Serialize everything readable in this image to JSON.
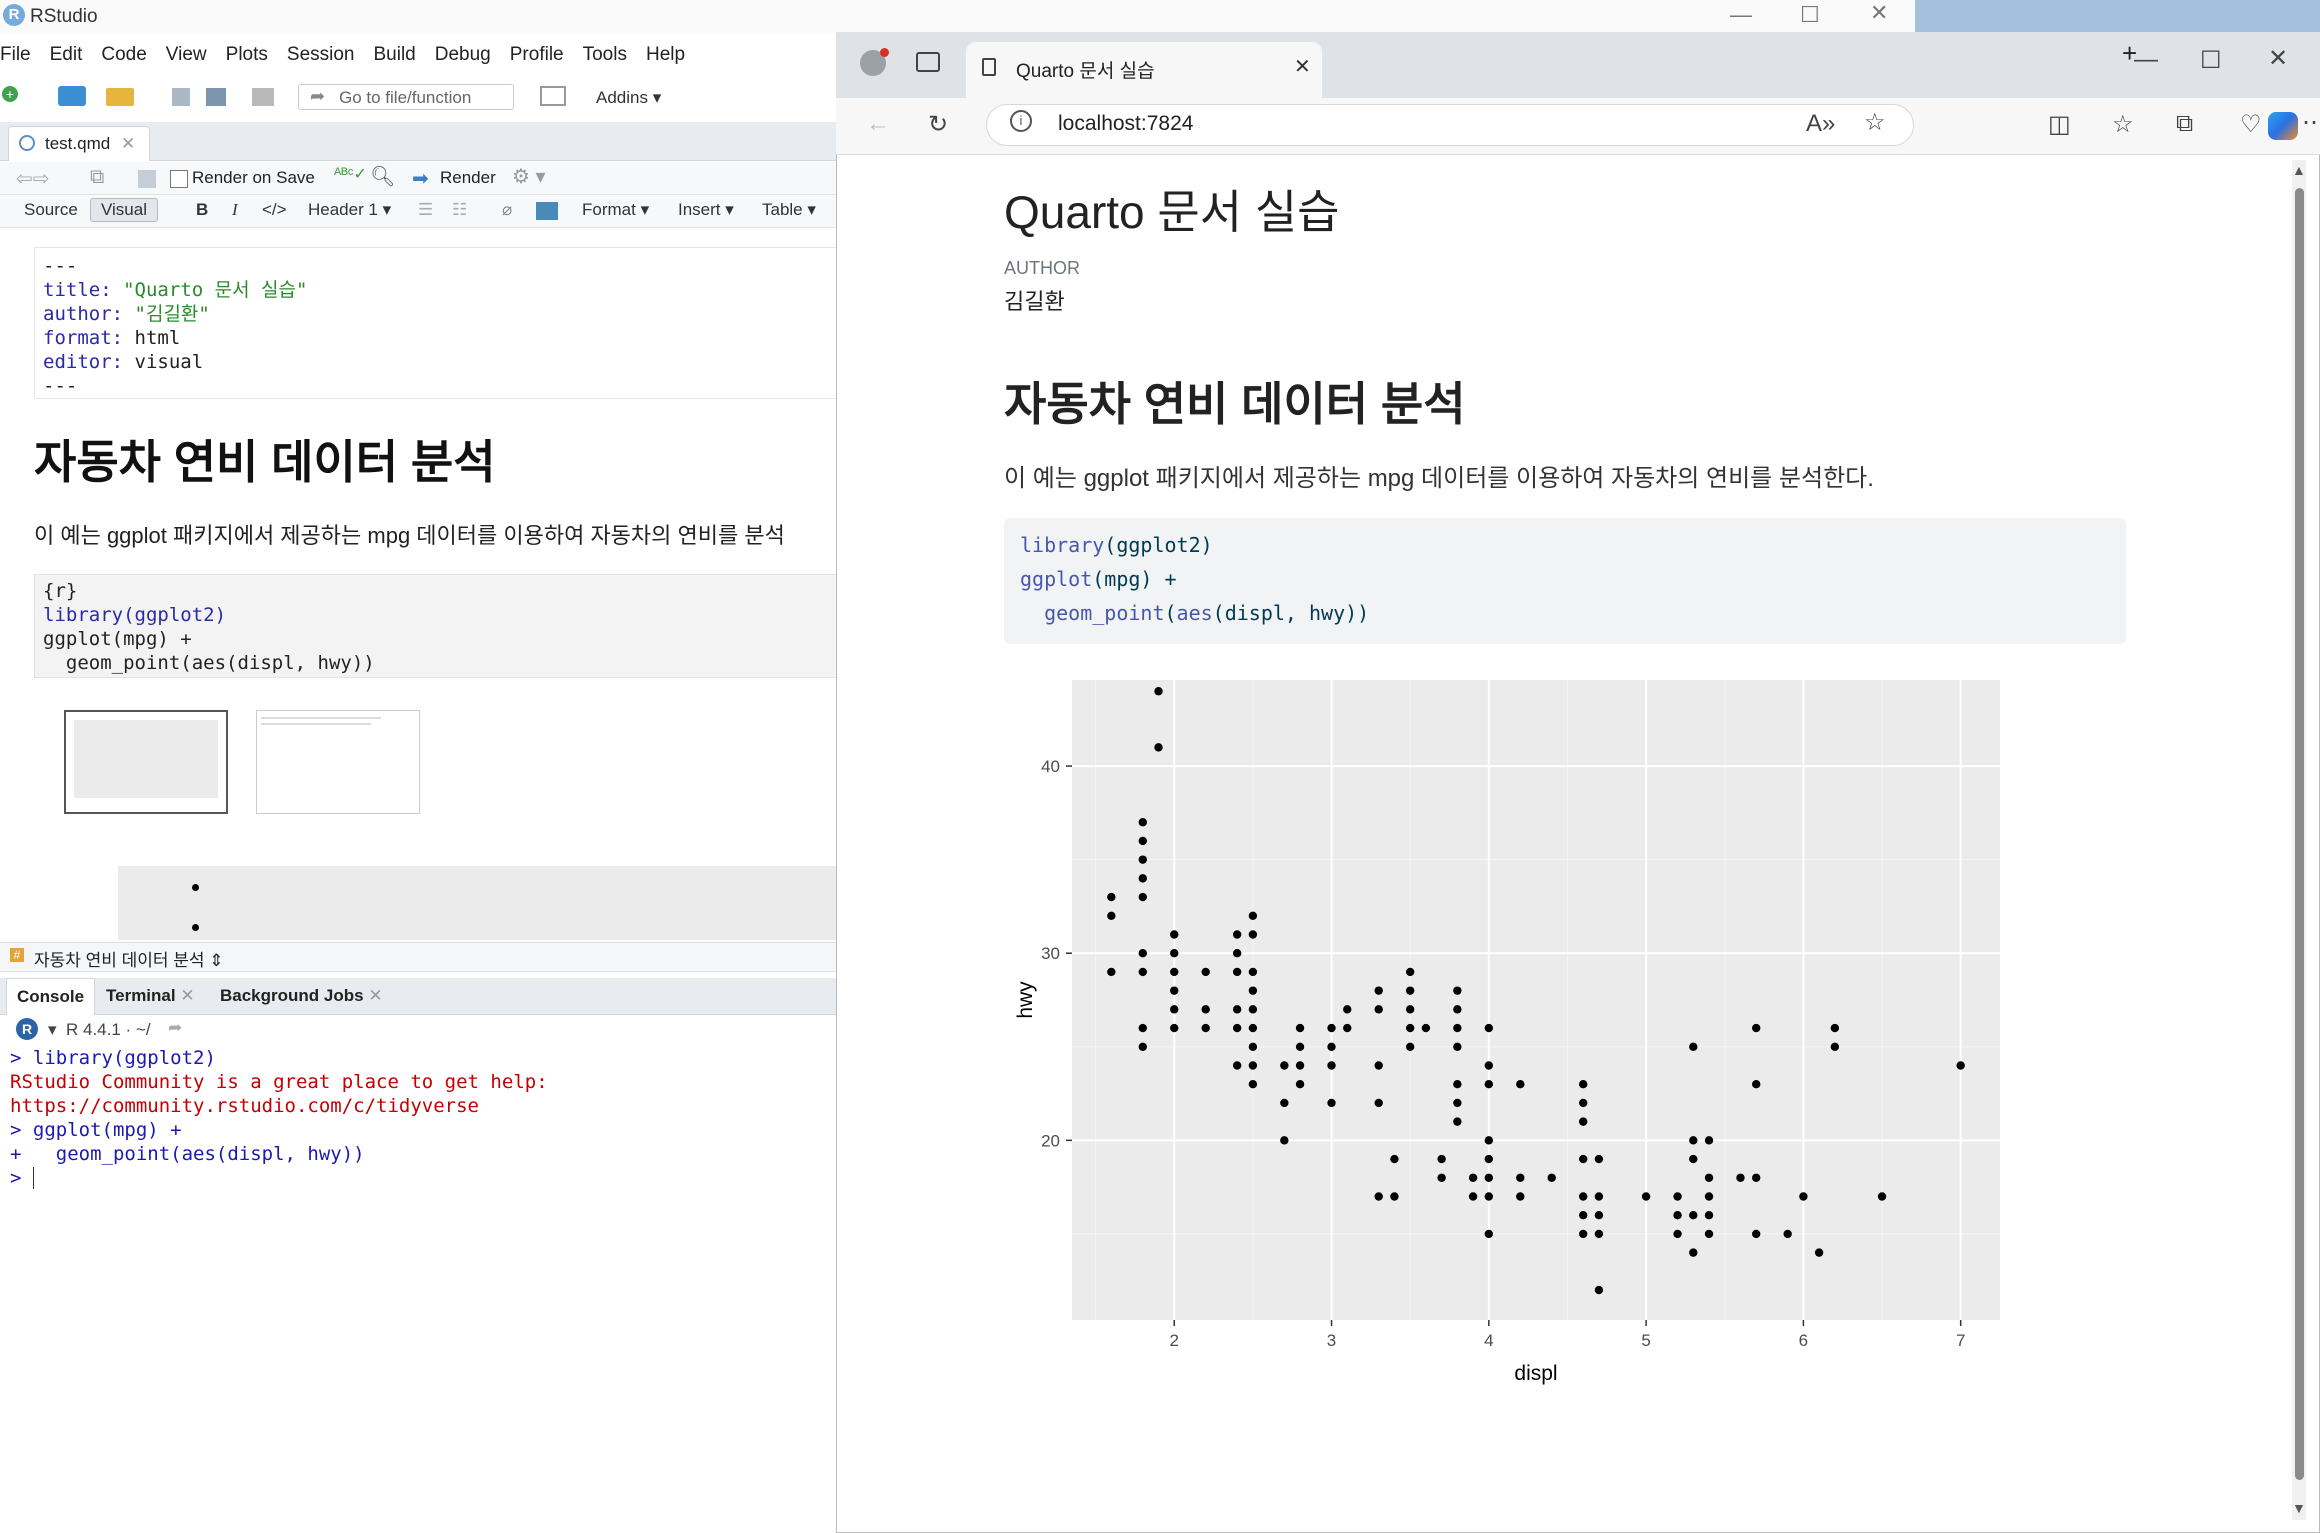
{
  "rstudio": {
    "title": "RStudio",
    "menu": [
      "File",
      "Edit",
      "Code",
      "View",
      "Plots",
      "Session",
      "Build",
      "Debug",
      "Profile",
      "Tools",
      "Help"
    ],
    "goto_placeholder": "Go to file/function",
    "addins": "Addins",
    "file_tab": "test.qmd",
    "render_on_save": "Render on Save",
    "render": "Render",
    "source_btn": "Source",
    "visual_btn": "Visual",
    "header_select": "Header 1",
    "format_menu": "Format",
    "insert_menu": "Insert",
    "table_menu": "Table",
    "yaml": {
      "sep": "---",
      "title_key": "title:",
      "title_val": "\"Quarto 문서 실습\"",
      "author_key": "author:",
      "author_val": "\"김길환\"",
      "format_key": "format:",
      "format_val": "html",
      "editor_key": "editor:",
      "editor_val": "visual"
    },
    "heading": "자동차 연비 데이터 분석",
    "paragraph": "이 예는 ggplot 패키지에서 제공하는 mpg 데이터를 이용하여 자동차의 연비를 분석",
    "chunk": {
      "header": "{r}",
      "line1": "library(ggplot2)",
      "line2": "ggplot(mpg) +",
      "line3": "  geom_point(aes(displ, hwy))"
    },
    "status_section": "자동차 연비 데이터 분석",
    "console_tabs": [
      "Console",
      "Terminal",
      "Background Jobs"
    ],
    "r_version": "R 4.4.1 · ~/",
    "console": {
      "l1": "> library(ggplot2)",
      "l2": "RStudio Community is a great place to get help:",
      "l3": "https://community.rstudio.com/c/tidyverse",
      "l4": "> ggplot(mpg) +",
      "l5": "+   geom_point(aes(displ, hwy))",
      "l6": "> "
    }
  },
  "browser": {
    "tab_title": "Quarto 문서 실습",
    "url": "localhost:7824",
    "doc": {
      "title": "Quarto 문서 실습",
      "author_label": "AUTHOR",
      "author": "김길환",
      "h2": "자동차 연비 데이터 분석",
      "paragraph": "이 예는 ggplot 패키지에서 제공하는 mpg 데이터를 이용하여 자동차의 연비를 분석한다.",
      "code_l1_fn": "library",
      "code_l1_rest": "(ggplot2)",
      "code_l2_fn": "ggplot",
      "code_l2_rest": "(mpg) +",
      "code_l3_fn": "  geom_point",
      "code_l3_mid": "(",
      "code_l3_fn2": "aes",
      "code_l3_rest": "(displ, hwy))"
    }
  },
  "chart_data": {
    "type": "scatter",
    "xlabel": "displ",
    "ylabel": "hwy",
    "xlim": [
      1.35,
      7.25
    ],
    "ylim": [
      10.4,
      44.6
    ],
    "xticks": [
      2,
      3,
      4,
      5,
      6,
      7
    ],
    "yticks": [
      20,
      30,
      40
    ],
    "grid": true,
    "points": [
      [
        1.6,
        33
      ],
      [
        1.6,
        32
      ],
      [
        1.6,
        29
      ],
      [
        1.8,
        37
      ],
      [
        1.8,
        36
      ],
      [
        1.8,
        35
      ],
      [
        1.8,
        34
      ],
      [
        1.8,
        33
      ],
      [
        1.8,
        30
      ],
      [
        1.8,
        29
      ],
      [
        1.8,
        26
      ],
      [
        1.8,
        25
      ],
      [
        1.9,
        44
      ],
      [
        1.9,
        41
      ],
      [
        2.0,
        31
      ],
      [
        2.0,
        30
      ],
      [
        2.0,
        29
      ],
      [
        2.0,
        28
      ],
      [
        2.0,
        27
      ],
      [
        2.0,
        26
      ],
      [
        2.2,
        29
      ],
      [
        2.2,
        27
      ],
      [
        2.2,
        26
      ],
      [
        2.4,
        31
      ],
      [
        2.4,
        30
      ],
      [
        2.4,
        29
      ],
      [
        2.4,
        27
      ],
      [
        2.4,
        26
      ],
      [
        2.4,
        24
      ],
      [
        2.5,
        32
      ],
      [
        2.5,
        31
      ],
      [
        2.5,
        29
      ],
      [
        2.5,
        28
      ],
      [
        2.5,
        27
      ],
      [
        2.5,
        26
      ],
      [
        2.5,
        25
      ],
      [
        2.5,
        24
      ],
      [
        2.5,
        23
      ],
      [
        2.7,
        24
      ],
      [
        2.7,
        22
      ],
      [
        2.7,
        20
      ],
      [
        2.8,
        26
      ],
      [
        2.8,
        25
      ],
      [
        2.8,
        24
      ],
      [
        2.8,
        23
      ],
      [
        3.0,
        26
      ],
      [
        3.0,
        25
      ],
      [
        3.0,
        24
      ],
      [
        3.0,
        22
      ],
      [
        3.1,
        27
      ],
      [
        3.1,
        26
      ],
      [
        3.3,
        28
      ],
      [
        3.3,
        27
      ],
      [
        3.3,
        24
      ],
      [
        3.3,
        22
      ],
      [
        3.3,
        17
      ],
      [
        3.4,
        19
      ],
      [
        3.4,
        17
      ],
      [
        3.5,
        29
      ],
      [
        3.5,
        28
      ],
      [
        3.5,
        27
      ],
      [
        3.5,
        26
      ],
      [
        3.5,
        25
      ],
      [
        3.6,
        26
      ],
      [
        3.7,
        19
      ],
      [
        3.7,
        18
      ],
      [
        3.8,
        28
      ],
      [
        3.8,
        27
      ],
      [
        3.8,
        26
      ],
      [
        3.8,
        25
      ],
      [
        3.8,
        23
      ],
      [
        3.8,
        22
      ],
      [
        3.8,
        21
      ],
      [
        3.9,
        17
      ],
      [
        3.9,
        18
      ],
      [
        4.0,
        26
      ],
      [
        4.0,
        24
      ],
      [
        4.0,
        23
      ],
      [
        4.0,
        20
      ],
      [
        4.0,
        19
      ],
      [
        4.0,
        18
      ],
      [
        4.0,
        17
      ],
      [
        4.0,
        15
      ],
      [
        4.2,
        23
      ],
      [
        4.2,
        18
      ],
      [
        4.2,
        17
      ],
      [
        4.4,
        18
      ],
      [
        4.6,
        23
      ],
      [
        4.6,
        22
      ],
      [
        4.6,
        21
      ],
      [
        4.6,
        19
      ],
      [
        4.6,
        17
      ],
      [
        4.6,
        16
      ],
      [
        4.6,
        15
      ],
      [
        4.7,
        19
      ],
      [
        4.7,
        17
      ],
      [
        4.7,
        16
      ],
      [
        4.7,
        15
      ],
      [
        4.7,
        12
      ],
      [
        5.0,
        17
      ],
      [
        5.2,
        17
      ],
      [
        5.2,
        16
      ],
      [
        5.2,
        15
      ],
      [
        5.3,
        25
      ],
      [
        5.3,
        20
      ],
      [
        5.3,
        19
      ],
      [
        5.3,
        16
      ],
      [
        5.3,
        14
      ],
      [
        5.4,
        20
      ],
      [
        5.4,
        18
      ],
      [
        5.4,
        17
      ],
      [
        5.4,
        16
      ],
      [
        5.4,
        15
      ],
      [
        5.6,
        18
      ],
      [
        5.7,
        26
      ],
      [
        5.7,
        23
      ],
      [
        5.7,
        18
      ],
      [
        5.7,
        15
      ],
      [
        5.9,
        15
      ],
      [
        6.0,
        17
      ],
      [
        6.1,
        14
      ],
      [
        6.2,
        26
      ],
      [
        6.2,
        25
      ],
      [
        6.5,
        17
      ],
      [
        7.0,
        24
      ]
    ]
  }
}
